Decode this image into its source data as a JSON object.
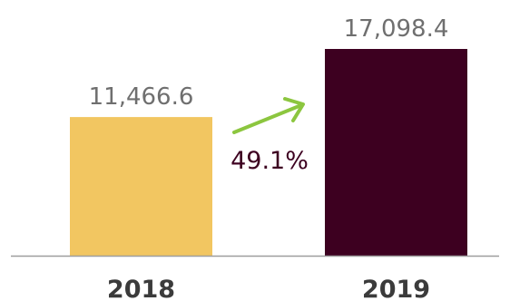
{
  "chart_data": {
    "type": "bar",
    "categories": [
      "2018",
      "2019"
    ],
    "values": [
      11466.6,
      17098.4
    ],
    "value_labels": [
      "11,466.6",
      "17,098.4"
    ],
    "bar_colors": [
      "#f2c661",
      "#3d0020"
    ],
    "baseline_color": "#9e9e9e",
    "arrow_color": "#8cc63f",
    "growth_label": "49.1%",
    "title": "",
    "xlabel": "",
    "ylabel": "",
    "ylim": [
      0,
      17098.4
    ],
    "grid": false,
    "legend": "none"
  }
}
